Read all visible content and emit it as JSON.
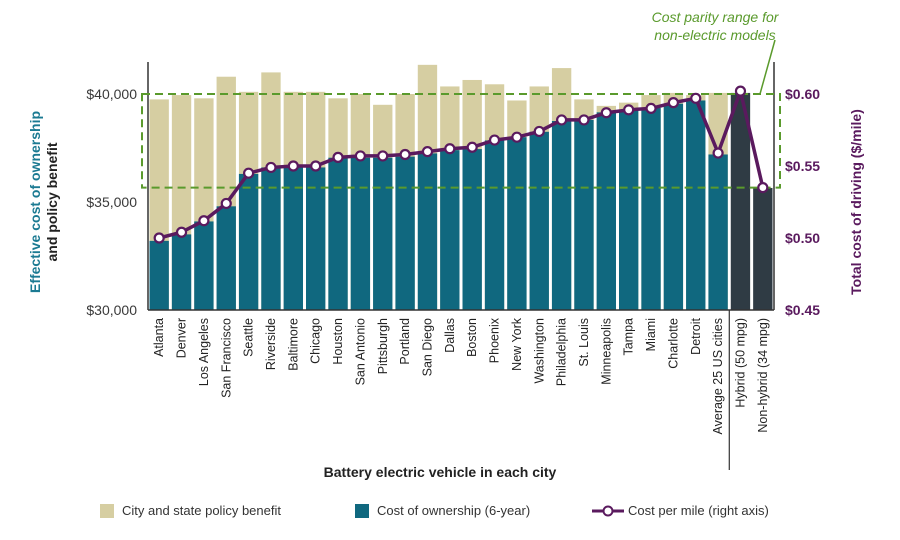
{
  "chart_data": {
    "type": "bar",
    "stacked": true,
    "categories": [
      "Atlanta",
      "Denver",
      "Los Angeles",
      "San Francisco",
      "Seattle",
      "Riverside",
      "Baltimore",
      "Chicago",
      "Houston",
      "San Antonio",
      "Pittsburgh",
      "Portland",
      "San Diego",
      "Dallas",
      "Boston",
      "Phoenix",
      "New York",
      "Washington",
      "Philadelphia",
      "St. Louis",
      "Minneapolis",
      "Tampa",
      "Miami",
      "Charlotte",
      "Detroit",
      "Average 25 US cities",
      "Hybrid (50 mpg)",
      "Non-hybrid (34 mpg)"
    ],
    "series": [
      {
        "name": "Cost of ownership (6-year)",
        "axis": "left",
        "color": "#10687f",
        "values": [
          33200,
          33500,
          34100,
          34800,
          36300,
          36600,
          36600,
          36600,
          37050,
          37050,
          37050,
          37100,
          37250,
          37400,
          37450,
          37850,
          38000,
          38250,
          38750,
          38800,
          39150,
          39250,
          39350,
          39550,
          39700,
          37200,
          40050,
          35650
        ]
      },
      {
        "name": "City and state policy benefit",
        "axis": "left",
        "color": "#d6cea2",
        "totals": [
          39750,
          39950,
          39800,
          40800,
          40100,
          41000,
          40100,
          40100,
          39800,
          40000,
          39500,
          40000,
          41350,
          40350,
          40650,
          40450,
          39700,
          40350,
          41200,
          39750,
          39450,
          39600,
          39950,
          40050,
          39950,
          40050,
          null,
          null
        ]
      },
      {
        "name": "Cost per mile (right axis)",
        "axis": "right",
        "type": "line",
        "color": "#5a1a5e",
        "values": [
          0.5,
          0.504,
          0.512,
          0.524,
          0.545,
          0.549,
          0.55,
          0.55,
          0.556,
          0.557,
          0.557,
          0.558,
          0.56,
          0.562,
          0.563,
          0.568,
          0.57,
          0.574,
          0.582,
          0.582,
          0.587,
          0.589,
          0.59,
          0.594,
          0.597,
          0.559,
          0.602,
          0.535
        ]
      }
    ],
    "non_electric_color": "#2f3b44",
    "xlabel": "Battery electric vehicle in each city",
    "ylabel": [
      "Effective cost of ownership",
      "and policy benefit"
    ],
    "y2label": "Total cost of driving ($/mile)",
    "ylim": [
      30000,
      40000
    ],
    "y2lim": [
      0.45,
      0.6
    ],
    "yticks": [
      "$30,000",
      "$35,000",
      "$40,000"
    ],
    "y2ticks": [
      "$0.45",
      "$0.50",
      "$0.55",
      "$0.60"
    ],
    "parity_range": {
      "label": [
        "Cost parity range for",
        "non-electric models"
      ],
      "y2_range": [
        0.535,
        0.6
      ],
      "color": "#5a9a2c"
    },
    "legend_position": "bottom",
    "grid": false
  },
  "legend": {
    "policy": "City and state policy benefit",
    "ownership": "Cost of ownership (6-year)",
    "cpm": "Cost per mile (right axis)"
  }
}
